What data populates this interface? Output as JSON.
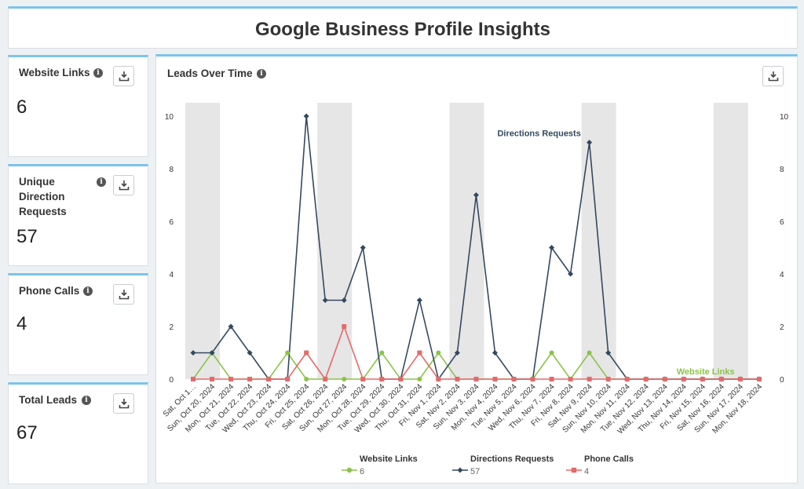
{
  "page_title": "Google Business Profile Insights",
  "stats": [
    {
      "label": "Website Links",
      "value": "6"
    },
    {
      "label": "Unique Direction Requests",
      "value": "57"
    },
    {
      "label": "Phone Calls",
      "value": "4"
    },
    {
      "label": "Total Leads",
      "value": "67"
    }
  ],
  "icons": {
    "info": "info-icon",
    "download": "download-icon"
  },
  "chart": {
    "title": "Leads Over Time"
  },
  "chart_data": {
    "type": "line",
    "categories": [
      "Sat, Oct 1…",
      "Sun, Oct 20, 2024",
      "Mon, Oct 21, 2024",
      "Tue, Oct 22, 2024",
      "Wed, Oct 23, 2024",
      "Thu, Oct 24, 2024",
      "Fri, Oct 25, 2024",
      "Sat, Oct 26, 2024",
      "Sun, Oct 27, 2024",
      "Mon, Oct 28, 2024",
      "Tue, Oct 29, 2024",
      "Wed, Oct 30, 2024",
      "Thu, Oct 31, 2024",
      "Fri, Nov 1, 2024",
      "Sat, Nov 2, 2024",
      "Sun, Nov 3, 2024",
      "Mon, Nov 4, 2024",
      "Tue, Nov 5, 2024",
      "Wed, Nov 6, 2024",
      "Thu, Nov 7, 2024",
      "Fri, Nov 8, 2024",
      "Sat, Nov 9, 2024",
      "Sun, Nov 10, 2024",
      "Mon, Nov 11, 2024",
      "Tue, Nov 12, 2024",
      "Wed, Nov 13, 2024",
      "Thu, Nov 14, 2024",
      "Fri, Nov 15, 2024",
      "Sat, Nov 16, 2024",
      "Sun, Nov 17, 2024",
      "Mon, Nov 18, 2024"
    ],
    "weekend_bands": [
      [
        0,
        1
      ],
      [
        7,
        8
      ],
      [
        14,
        15
      ],
      [
        21,
        22
      ],
      [
        28,
        29
      ]
    ],
    "series": [
      {
        "name": "Website Links",
        "total": "6",
        "color": "#8bc34a",
        "marker": "circle",
        "values": [
          0,
          1,
          0,
          0,
          0,
          1,
          0,
          0,
          0,
          0,
          1,
          0,
          0,
          1,
          0,
          0,
          0,
          0,
          0,
          1,
          0,
          1,
          0,
          0,
          0,
          0,
          0,
          0,
          0,
          0,
          0
        ]
      },
      {
        "name": "Directions Requests",
        "total": "57",
        "color": "#34495e",
        "marker": "diamond",
        "values": [
          1,
          1,
          2,
          1,
          0,
          0,
          10,
          3,
          3,
          5,
          0,
          0,
          3,
          0,
          1,
          7,
          1,
          0,
          0,
          5,
          4,
          9,
          1,
          0,
          0,
          0,
          0,
          0,
          0,
          0,
          0
        ]
      },
      {
        "name": "Phone Calls",
        "total": "4",
        "color": "#e46a6a",
        "marker": "square",
        "values": [
          0,
          0,
          0,
          0,
          0,
          0,
          1,
          0,
          2,
          0,
          0,
          0,
          1,
          0,
          0,
          0,
          0,
          0,
          0,
          0,
          0,
          0,
          0,
          0,
          0,
          0,
          0,
          0,
          0,
          0,
          0
        ]
      }
    ],
    "annotations": [
      {
        "text": "Directions Requests",
        "color": "#34495e"
      },
      {
        "text": "Website Links",
        "color": "#8bc34a"
      }
    ],
    "ylim": [
      0,
      10
    ],
    "yticks": [
      "0",
      "2",
      "4",
      "6",
      "8",
      "10"
    ],
    "grid": false,
    "legend_position": "bottom"
  }
}
